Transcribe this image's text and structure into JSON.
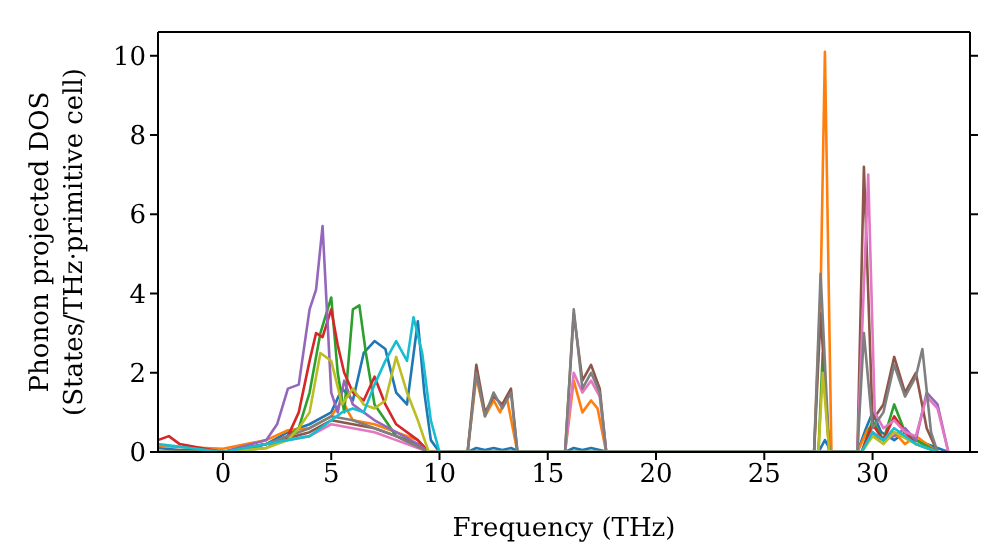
{
  "chart_data": {
    "type": "line",
    "xlabel": "Frequency (THz)",
    "ylabel": "Phonon projected DOS\n(States/THz·primitive cell)",
    "xlim": [
      -3,
      34.5
    ],
    "ylim": [
      0,
      10.6
    ],
    "xticks": [
      0,
      5,
      10,
      15,
      20,
      25,
      30
    ],
    "yticks": [
      0,
      2,
      4,
      6,
      8,
      10
    ],
    "grid": false,
    "legend": false,
    "marker": "none",
    "line_style": "solid",
    "series": [
      {
        "color": "#1f77b4",
        "x": [
          -3,
          -2,
          -1,
          0,
          1,
          2,
          3,
          4,
          5,
          5.5,
          6,
          6.5,
          7,
          7.5,
          8,
          8.5,
          9,
          9.3,
          9.6,
          10,
          11.3,
          11.7,
          12.1,
          12.5,
          12.9,
          13.3,
          13.7,
          15.8,
          16.2,
          16.6,
          17,
          17.4,
          17.8,
          27.5,
          27.8,
          28.1,
          29.3,
          29.7,
          30,
          30.4,
          31,
          31.5,
          32,
          32.5,
          33,
          33.5
        ],
        "values": [
          0.1,
          0.05,
          0.05,
          0,
          0.05,
          0.2,
          0.5,
          0.7,
          1,
          1.6,
          1.3,
          2.5,
          2.8,
          2.6,
          1.5,
          1.2,
          3.3,
          1.5,
          0.3,
          0,
          0,
          0.1,
          0.05,
          0.1,
          0.05,
          0.1,
          0,
          0,
          0.1,
          0.05,
          0.1,
          0.05,
          0,
          0,
          0.3,
          0,
          0,
          0.6,
          1,
          0.5,
          0.3,
          0.5,
          0.3,
          0.2,
          0.1,
          0
        ]
      },
      {
        "color": "#ff7f0e",
        "x": [
          -3,
          0,
          2,
          3,
          4,
          5,
          5.5,
          6,
          7,
          8,
          9,
          9.5,
          11.3,
          11.7,
          12.1,
          12.5,
          12.8,
          13.1,
          13.6,
          15.8,
          16.2,
          16.6,
          17,
          17.3,
          17.7,
          27.3,
          27.6,
          27.8,
          28.1,
          29.3,
          29.8,
          30.3,
          31,
          31.5,
          32,
          33
        ],
        "values": [
          0.15,
          0.08,
          0.3,
          0.55,
          0.6,
          0.9,
          1.3,
          0.8,
          0.7,
          0.5,
          0.3,
          0,
          0,
          1.9,
          0.9,
          1.3,
          1.0,
          1.4,
          0,
          0,
          1.8,
          1.0,
          1.3,
          1.1,
          0,
          0,
          4,
          10.1,
          0,
          0,
          0.6,
          0.3,
          0.5,
          0.2,
          0.4,
          0
        ]
      },
      {
        "color": "#2ca02c",
        "x": [
          -3,
          0,
          2,
          3,
          3.5,
          4,
          4.5,
          5,
          5.3,
          5.6,
          6,
          6.3,
          6.6,
          7,
          7.5,
          8,
          9,
          9.5,
          27.5,
          27.7,
          28,
          29.5,
          30,
          30.5,
          31,
          31.5,
          32,
          33
        ],
        "values": [
          0,
          0,
          0.1,
          0.4,
          0.6,
          1.5,
          3.0,
          3.9,
          2.0,
          1.0,
          3.6,
          3.7,
          2.5,
          1.2,
          0.8,
          0.4,
          0.2,
          0,
          0,
          2.5,
          0,
          0,
          0.8,
          0.3,
          1.2,
          0.5,
          0.3,
          0
        ]
      },
      {
        "color": "#d62728",
        "x": [
          -3,
          -2.5,
          -2,
          0,
          2,
          3,
          3.5,
          4,
          4.3,
          4.6,
          5,
          5.3,
          5.6,
          6,
          6.5,
          7,
          7.5,
          8,
          9,
          9.5,
          29.5,
          30,
          30.5,
          31,
          31.5,
          32,
          33
        ],
        "values": [
          0.3,
          0.4,
          0.2,
          0,
          0.2,
          0.4,
          1.0,
          2.3,
          3.0,
          2.9,
          3.6,
          2.7,
          2.0,
          1.5,
          1.3,
          1.9,
          1.2,
          0.7,
          0.3,
          0,
          0,
          0.7,
          0.3,
          0.9,
          0.5,
          0.2,
          0
        ]
      },
      {
        "color": "#9467bd",
        "x": [
          -3,
          0,
          2,
          2.5,
          3,
          3.5,
          4,
          4.3,
          4.6,
          5,
          5.3,
          5.6,
          6,
          6.5,
          7,
          8,
          9,
          9.5,
          29.5,
          30,
          30.5,
          31,
          31.5,
          32,
          32.5,
          33,
          33.5
        ],
        "values": [
          0,
          0,
          0.3,
          0.7,
          1.6,
          1.7,
          3.6,
          4.1,
          5.7,
          1.5,
          1.0,
          1.8,
          1.2,
          1.0,
          0.8,
          0.5,
          0.2,
          0,
          0,
          0.5,
          0.3,
          0.4,
          0.6,
          0.3,
          1.5,
          1.2,
          0
        ]
      },
      {
        "color": "#8c564b",
        "x": [
          -3,
          0,
          2,
          4,
          5,
          6,
          7,
          8,
          9.5,
          11.3,
          11.7,
          12.1,
          12.5,
          12.9,
          13.3,
          13.6,
          15.8,
          16.2,
          16.6,
          17,
          17.4,
          17.7,
          27.3,
          27.6,
          28,
          29.3,
          29.6,
          30,
          30.5,
          31,
          31.5,
          32,
          32.5,
          33
        ],
        "values": [
          0,
          0,
          0.2,
          0.5,
          0.8,
          0.7,
          0.6,
          0.4,
          0,
          0,
          2.2,
          1.0,
          1.4,
          1.2,
          1.6,
          0,
          0,
          3.5,
          1.8,
          2.2,
          1.6,
          0,
          0,
          3.5,
          0,
          0,
          7.2,
          0.8,
          1.2,
          2.4,
          1.5,
          2.0,
          0.6,
          0
        ]
      },
      {
        "color": "#e377c2",
        "x": [
          2,
          4,
          5,
          6,
          7,
          8,
          9.5,
          15.8,
          16.2,
          16.6,
          17,
          17.4,
          17.7,
          29.3,
          29.8,
          30.1,
          30.5,
          31,
          31.5,
          32,
          32.5,
          33,
          33.5
        ],
        "values": [
          0.2,
          0.4,
          0.7,
          0.6,
          0.5,
          0.3,
          0,
          0,
          2.0,
          1.5,
          1.8,
          1.4,
          0,
          0,
          7.0,
          1.0,
          0.6,
          0.8,
          0.5,
          0.4,
          1.4,
          1.1,
          0
        ]
      },
      {
        "color": "#7f7f7f",
        "x": [
          -3,
          0,
          2,
          4,
          5,
          6,
          7,
          8,
          9.5,
          11.3,
          11.7,
          12.1,
          12.5,
          12.9,
          13.3,
          13.6,
          15.8,
          16.2,
          16.6,
          17,
          17.4,
          17.7,
          27.3,
          27.6,
          28,
          29.3,
          29.6,
          30,
          30.5,
          31,
          31.5,
          32,
          32.3,
          32.7,
          33
        ],
        "values": [
          0,
          0,
          0.2,
          0.6,
          0.9,
          0.8,
          0.6,
          0.4,
          0,
          0,
          2.0,
          0.9,
          1.5,
          1.1,
          1.5,
          0,
          0,
          3.6,
          1.6,
          2.0,
          1.5,
          0,
          0,
          4.5,
          0,
          0,
          3.0,
          0.6,
          1.0,
          2.2,
          1.4,
          1.9,
          2.6,
          0.5,
          0
        ]
      },
      {
        "color": "#bcbd22",
        "x": [
          -3,
          0,
          2,
          3,
          3.5,
          4,
          4.5,
          5,
          5.5,
          6,
          6.5,
          7,
          7.5,
          8,
          8.5,
          9,
          9.5,
          27.5,
          27.7,
          28,
          29.5,
          30,
          30.5,
          31,
          32,
          33
        ],
        "values": [
          0,
          0,
          0.1,
          0.3,
          0.6,
          1.0,
          2.5,
          2.3,
          1.2,
          1.6,
          1.2,
          1.1,
          1.3,
          2.4,
          1.5,
          0.8,
          0,
          0,
          2.0,
          0,
          0,
          0.4,
          0.2,
          0.5,
          0.2,
          0
        ]
      },
      {
        "color": "#17becf",
        "x": [
          -3,
          0,
          2,
          4,
          5,
          5.5,
          6,
          6.5,
          7,
          7.5,
          8,
          8.5,
          8.8,
          9.2,
          9.6,
          10,
          29.5,
          30,
          30.5,
          31,
          32,
          33
        ],
        "values": [
          0.2,
          0,
          0.2,
          0.4,
          0.8,
          1.0,
          1.1,
          1.0,
          1.7,
          2.3,
          2.8,
          2.3,
          3.4,
          2.5,
          0.8,
          0,
          0,
          0.5,
          0.3,
          0.6,
          0.2,
          0
        ]
      }
    ]
  }
}
